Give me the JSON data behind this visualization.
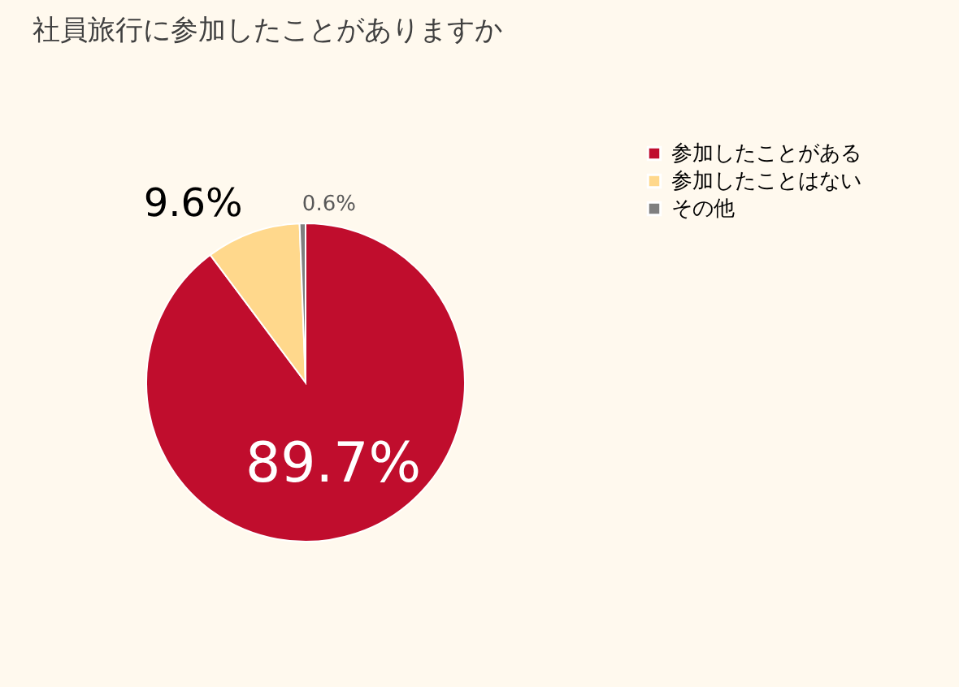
{
  "chart_data": {
    "type": "pie",
    "title": "社員旅行に参加したことがありますか",
    "categories": [
      "参加したことがある",
      "参加したことはない",
      "その他"
    ],
    "values": [
      89.7,
      9.6,
      0.6
    ],
    "colors": [
      "#c00d2d",
      "#ffd88c",
      "#7f7f7f"
    ],
    "value_labels": [
      "89.7%",
      "9.6%",
      "0.6%"
    ],
    "legend": "right"
  }
}
